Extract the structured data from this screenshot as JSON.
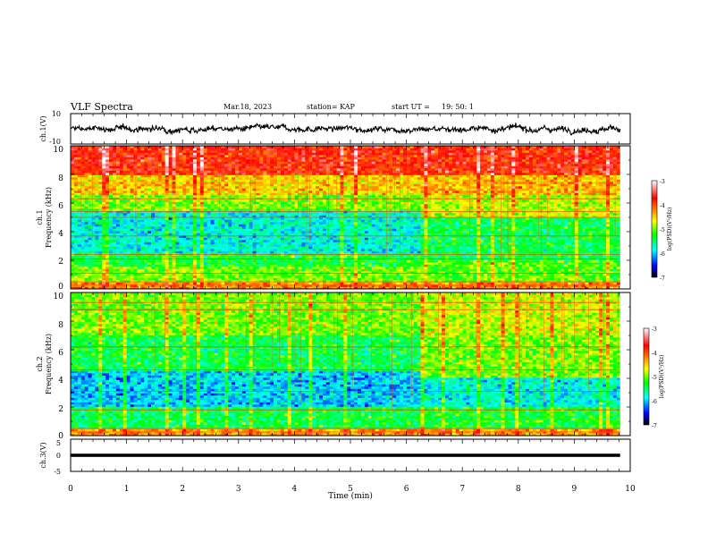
{
  "header": {
    "title": "VLF Spectra",
    "date": "Mar.18, 2023",
    "station": "station= KAP",
    "start_label": "start UT =",
    "start_time": "19: 50: 1"
  },
  "chart_data": [
    {
      "type": "line",
      "panel": "ch1-waveform",
      "ylabel": "ch.1(V)",
      "yticks": [
        "10",
        "-10"
      ],
      "ylim": [
        -10,
        10
      ],
      "xlim": [
        0,
        10
      ],
      "x_end": 9.82,
      "amplitude_typical": 4
    },
    {
      "type": "heatmap",
      "panel": "ch1-spectrogram",
      "ylabel_lines": [
        "ch.1",
        "Frequency (kHz)"
      ],
      "yticks": [
        "0",
        "2",
        "4",
        "6",
        "8",
        "10"
      ],
      "ylim": [
        0,
        10
      ],
      "xlim": [
        0,
        10
      ],
      "x_end": 9.82,
      "colorbar": {
        "label": "log(PSD)(V²/Hz)",
        "ticks": [
          "-3",
          "-4",
          "-5",
          "-6",
          "-7"
        ],
        "range": [
          -7,
          -3
        ],
        "colors": [
          "#ffffff",
          "#ff0000",
          "#ffff00",
          "#00ff00",
          "#00ffff",
          "#0000ff",
          "#000000"
        ]
      },
      "step_change_time_min": 6.2,
      "bands_before": [
        {
          "f0": 0.0,
          "f1": 0.5,
          "level": -4.2
        },
        {
          "f0": 0.5,
          "f1": 1.5,
          "level": -5.0
        },
        {
          "f0": 1.5,
          "f1": 2.5,
          "level": -5.3
        },
        {
          "f0": 2.5,
          "f1": 5.5,
          "level": -5.8
        },
        {
          "f0": 5.5,
          "f1": 6.5,
          "level": -5.0
        },
        {
          "f0": 6.5,
          "f1": 8.0,
          "level": -4.5
        },
        {
          "f0": 8.0,
          "f1": 10.0,
          "level": -3.8
        }
      ],
      "bands_after": [
        {
          "f0": 0.0,
          "f1": 0.5,
          "level": -4.2
        },
        {
          "f0": 0.5,
          "f1": 2.0,
          "level": -5.1
        },
        {
          "f0": 2.0,
          "f1": 5.0,
          "level": -5.4
        },
        {
          "f0": 5.0,
          "f1": 6.5,
          "level": -4.8
        },
        {
          "f0": 6.5,
          "f1": 8.0,
          "level": -4.4
        },
        {
          "f0": 8.0,
          "f1": 10.0,
          "level": -3.8
        }
      ],
      "tonal_lines_khz": [
        0.25,
        0.5,
        1.1,
        2.1,
        2.4,
        3.7,
        5.0,
        5.4,
        6.3
      ]
    },
    {
      "type": "heatmap",
      "panel": "ch2-spectrogram",
      "ylabel_lines": [
        "ch.2",
        "Frequency (kHz)"
      ],
      "yticks": [
        "0",
        "2",
        "4",
        "6",
        "8",
        "10"
      ],
      "ylim": [
        0,
        10
      ],
      "xlim": [
        0,
        10
      ],
      "x_end": 9.82,
      "colorbar": {
        "label": "log(PSD)(V²/Hz)",
        "ticks": [
          "-3",
          "-4",
          "-5",
          "-6",
          "-7"
        ],
        "range": [
          -7,
          -3
        ],
        "colors": [
          "#ffffff",
          "#ff0000",
          "#ffff00",
          "#00ff00",
          "#00ffff",
          "#0000ff",
          "#000000"
        ]
      },
      "step_change_time_min": 6.2,
      "bands_before": [
        {
          "f0": 0.0,
          "f1": 0.5,
          "level": -4.3
        },
        {
          "f0": 0.5,
          "f1": 2.0,
          "level": -5.4
        },
        {
          "f0": 2.0,
          "f1": 4.5,
          "level": -6.0
        },
        {
          "f0": 4.5,
          "f1": 7.0,
          "level": -5.4
        },
        {
          "f0": 7.0,
          "f1": 10.0,
          "level": -5.0
        }
      ],
      "bands_after": [
        {
          "f0": 0.0,
          "f1": 0.5,
          "level": -4.3
        },
        {
          "f0": 0.5,
          "f1": 2.0,
          "level": -5.3
        },
        {
          "f0": 2.0,
          "f1": 4.0,
          "level": -5.8
        },
        {
          "f0": 4.0,
          "f1": 7.0,
          "level": -5.0
        },
        {
          "f0": 7.0,
          "f1": 10.0,
          "level": -4.8
        }
      ],
      "tonal_lines_khz": [
        0.25,
        0.5,
        1.8,
        3.1,
        4.6,
        6.2,
        8.8,
        9.3
      ]
    },
    {
      "type": "line",
      "panel": "ch3-waveform",
      "ylabel": "ch.3(V)",
      "yticks": [
        "5",
        "0",
        "-5"
      ],
      "ylim": [
        -5,
        5
      ],
      "xlim": [
        0,
        10
      ],
      "x_end": 9.82,
      "level": 0,
      "thickness_v": 1
    }
  ],
  "xaxis": {
    "label": "Time (min)",
    "ticks": [
      "0",
      "1",
      "2",
      "3",
      "4",
      "5",
      "6",
      "7",
      "8",
      "9",
      "10"
    ],
    "range": [
      0,
      10
    ]
  }
}
